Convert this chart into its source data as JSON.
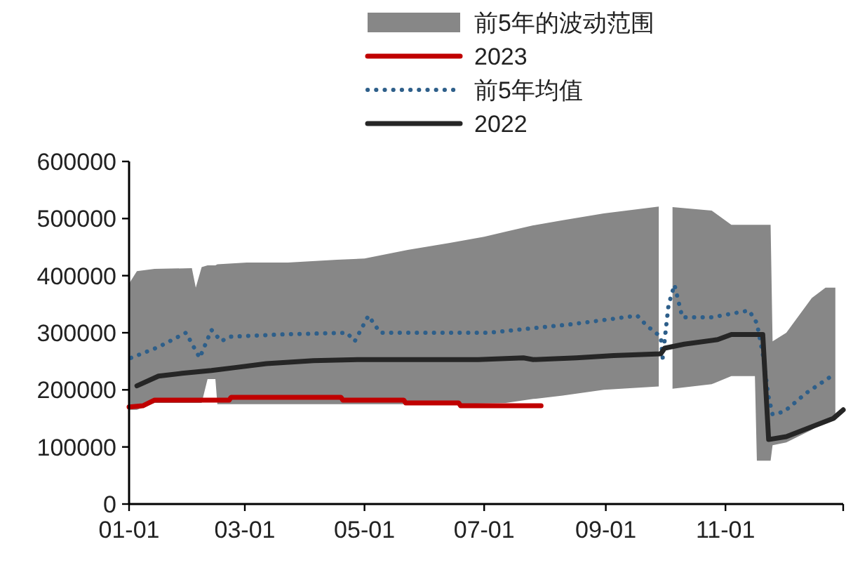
{
  "chart_data": {
    "type": "line",
    "xlim": [
      "--01-01",
      "--12-31"
    ],
    "xticks": [
      {
        "value": "--01-01",
        "label": "01-01"
      },
      {
        "value": "--03-01",
        "label": "03-01"
      },
      {
        "value": "--05-01",
        "label": "05-01"
      },
      {
        "value": "--07-01",
        "label": "07-01"
      },
      {
        "value": "--09-01",
        "label": "09-01"
      },
      {
        "value": "--11-01",
        "label": "11-01"
      }
    ],
    "ylim": [
      0,
      600000
    ],
    "yticks": [
      0,
      100000,
      200000,
      300000,
      400000,
      500000,
      600000
    ],
    "grid": false,
    "legend": "top",
    "series": [
      {
        "name": "前5年的波动范围",
        "type": "area",
        "color": "#878787",
        "x": [
          "--01-01",
          "--01-05",
          "--01-14",
          "--02-02",
          "--02-04",
          "--02-07",
          "--02-10",
          "--02-14",
          "--02-15",
          "--03-02",
          "--03-23",
          "--04-17",
          "--05-01",
          "--05-23",
          "--06-13",
          "--07-01",
          "--07-12",
          "--07-26",
          "--08-10",
          "--08-31",
          "--09-28",
          "--09-29",
          "--10-05",
          "--10-25",
          "--11-04",
          "--11-16",
          "--11-17",
          "--11-24",
          "--11-25",
          "--12-02",
          "--12-15",
          "--12-22",
          "--12-27"
        ],
        "values": [
          null,
          null,
          null,
          null,
          null,
          null,
          null,
          null,
          null,
          null,
          null,
          null,
          null,
          null,
          null,
          null,
          null,
          null,
          null,
          null,
          null,
          null,
          null,
          null,
          null,
          null,
          null,
          null,
          null,
          null,
          null,
          null,
          null
        ],
        "lower": [
          165000,
          165000,
          177000,
          177000,
          177000,
          177000,
          219000,
          219000,
          175000,
          175000,
          175000,
          175000,
          175000,
          175000,
          175000,
          176000,
          177000,
          184000,
          190000,
          200000,
          206000,
          null,
          202000,
          210000,
          224000,
          224000,
          76000,
          76000,
          103000,
          108000,
          130000,
          145000,
          152000
        ],
        "upper": [
          386000,
          408000,
          412000,
          413000,
          379000,
          415000,
          418000,
          418000,
          420000,
          423000,
          423000,
          428000,
          430000,
          445000,
          457000,
          468000,
          477000,
          488000,
          497000,
          509000,
          521000,
          null,
          520000,
          514000,
          489000,
          489000,
          489000,
          489000,
          285000,
          300000,
          361000,
          379000,
          379000
        ]
      },
      {
        "name": "2023",
        "color": "#c00000",
        "line_style": "solid",
        "x": [
          "--01-01",
          "--01-08",
          "--01-14",
          "--02-21",
          "--02-22",
          "--04-19",
          "--04-20",
          "--05-21",
          "--05-22",
          "--06-18",
          "--06-19",
          "--07-30"
        ],
        "values": [
          170000,
          172000,
          182000,
          182000,
          187000,
          187000,
          182000,
          182000,
          177000,
          177000,
          172000,
          172000
        ]
      },
      {
        "name": "前5年均值",
        "color": "#2e5f8a",
        "line_style": "dotted",
        "x": [
          "--01-02",
          "--01-16",
          "--01-30",
          "--02-06",
          "--02-12",
          "--02-17",
          "--02-21",
          "--03-19",
          "--04-22",
          "--04-26",
          "--05-03",
          "--05-09",
          "--07-03",
          "--08-15",
          "--09-17",
          "--09-22",
          "--09-29",
          "--09-30",
          "--10-03",
          "--10-06",
          "--10-10",
          "--10-25",
          "--11-13",
          "--11-17",
          "--11-20",
          "--11-23",
          "--11-25",
          "--12-01",
          "--12-12",
          "--12-25"
        ],
        "values": [
          256000,
          275000,
          300000,
          256000,
          305000,
          285000,
          293000,
          297000,
          300000,
          285000,
          330000,
          300000,
          300000,
          315000,
          330000,
          312000,
          293000,
          256000,
          349000,
          384000,
          327000,
          327000,
          339000,
          317000,
          263000,
          187000,
          157000,
          162000,
          194000,
          224000
        ]
      },
      {
        "name": "2022",
        "color": "#262626",
        "line_style": "solid",
        "x": [
          "--01-05",
          "--01-16",
          "--01-28",
          "--02-12",
          "--02-24",
          "--03-12",
          "--04-05",
          "--04-29",
          "--06-28",
          "--07-21",
          "--07-26",
          "--08-17",
          "--09-05",
          "--09-29",
          "--10-01",
          "--10-11",
          "--10-28",
          "--11-04",
          "--11-20",
          "--11-23",
          "--12-02",
          "--12-17",
          "--12-26",
          "--12-31"
        ],
        "values": [
          207000,
          224000,
          229000,
          234000,
          239000,
          246000,
          251000,
          253000,
          253000,
          256000,
          253000,
          256000,
          260000,
          263000,
          273000,
          280000,
          288000,
          297000,
          297000,
          113000,
          118000,
          138000,
          150000,
          165000
        ]
      }
    ]
  }
}
